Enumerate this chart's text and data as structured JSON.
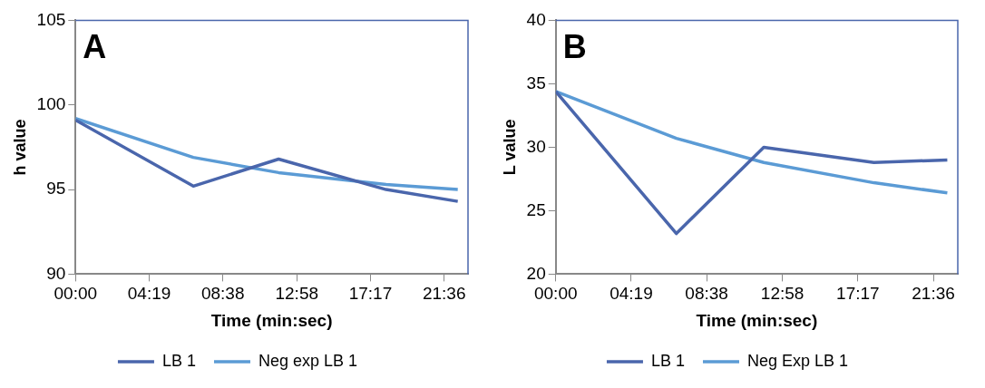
{
  "chart_data": [
    {
      "type": "line",
      "title": "A",
      "xlabel": "Time (min:sec)",
      "ylabel": "h value",
      "x": [
        0,
        6.9,
        11.9,
        18.2,
        22.4
      ],
      "series": [
        {
          "name": "LB 1",
          "color": "#4a66ac",
          "values": [
            99.1,
            95.2,
            96.8,
            95.0,
            94.3
          ]
        },
        {
          "name": "Neg exp LB 1",
          "color": "#5b9bd5",
          "values": [
            99.2,
            96.9,
            96.0,
            95.3,
            95.0
          ]
        }
      ],
      "xlim": [
        0,
        23
      ],
      "xticks": [
        {
          "value": 0,
          "label": "00:00"
        },
        {
          "value": 4.3167,
          "label": "04:19"
        },
        {
          "value": 8.6333,
          "label": "08:38"
        },
        {
          "value": 12.9667,
          "label": "12:58"
        },
        {
          "value": 17.2833,
          "label": "17:17"
        },
        {
          "value": 21.6,
          "label": "21:36"
        }
      ],
      "ylim": [
        90,
        105
      ],
      "yticks": [
        90,
        95,
        100,
        105
      ],
      "grid": false,
      "legend": "bottom",
      "marker": "none",
      "line_style": "solid"
    },
    {
      "type": "line",
      "title": "B",
      "xlabel": "Time (min:sec)",
      "ylabel": "L value",
      "x": [
        0,
        6.9,
        11.9,
        18.2,
        22.4
      ],
      "series": [
        {
          "name": "LB 1",
          "color": "#4a66ac",
          "values": [
            34.4,
            23.2,
            30.0,
            28.8,
            29.0
          ]
        },
        {
          "name": "Neg Exp LB 1",
          "color": "#5b9bd5",
          "values": [
            34.4,
            30.7,
            28.8,
            27.2,
            26.4
          ]
        }
      ],
      "xlim": [
        0,
        23
      ],
      "xticks": [
        {
          "value": 0,
          "label": "00:00"
        },
        {
          "value": 4.3167,
          "label": "04:19"
        },
        {
          "value": 8.6333,
          "label": "08:38"
        },
        {
          "value": 12.9667,
          "label": "12:58"
        },
        {
          "value": 17.2833,
          "label": "17:17"
        },
        {
          "value": 21.6,
          "label": "21:36"
        }
      ],
      "ylim": [
        20,
        40
      ],
      "yticks": [
        20,
        25,
        30,
        35,
        40
      ],
      "grid": false,
      "legend": "bottom",
      "marker": "none",
      "line_style": "solid"
    }
  ]
}
